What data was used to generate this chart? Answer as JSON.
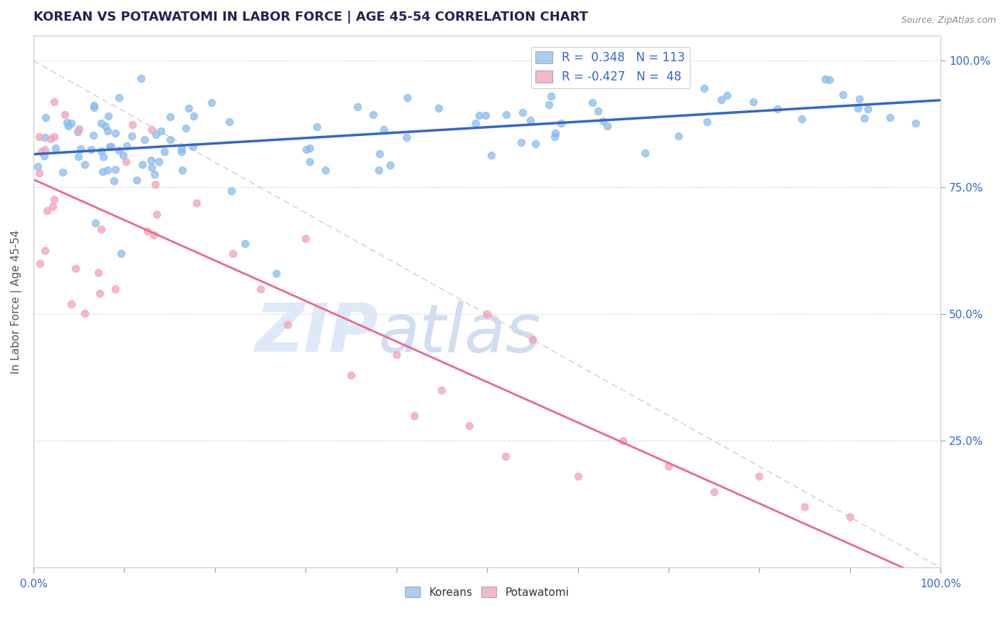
{
  "title": "KOREAN VS POTAWATOMI IN LABOR FORCE | AGE 45-54 CORRELATION CHART",
  "source_text": "Source: ZipAtlas.com",
  "ylabel": "In Labor Force | Age 45-54",
  "korean_R": 0.348,
  "korean_N": 113,
  "potawatomi_R": -0.427,
  "potawatomi_N": 48,
  "korean_color": "#88BBEE",
  "potawatomi_color": "#F4A0B8",
  "korean_line_color": "#3366CC",
  "potawatomi_line_color": "#EE6688",
  "trend_dashed_color": "#CCCCCC",
  "legend_box_color": "#AACCEE",
  "legend_box_color2": "#F4B8C8",
  "title_color": "#222255",
  "tick_label_color": "#3366cc",
  "watermark_color": "#DDE8F8",
  "watermark_text": "ZIPatlas"
}
